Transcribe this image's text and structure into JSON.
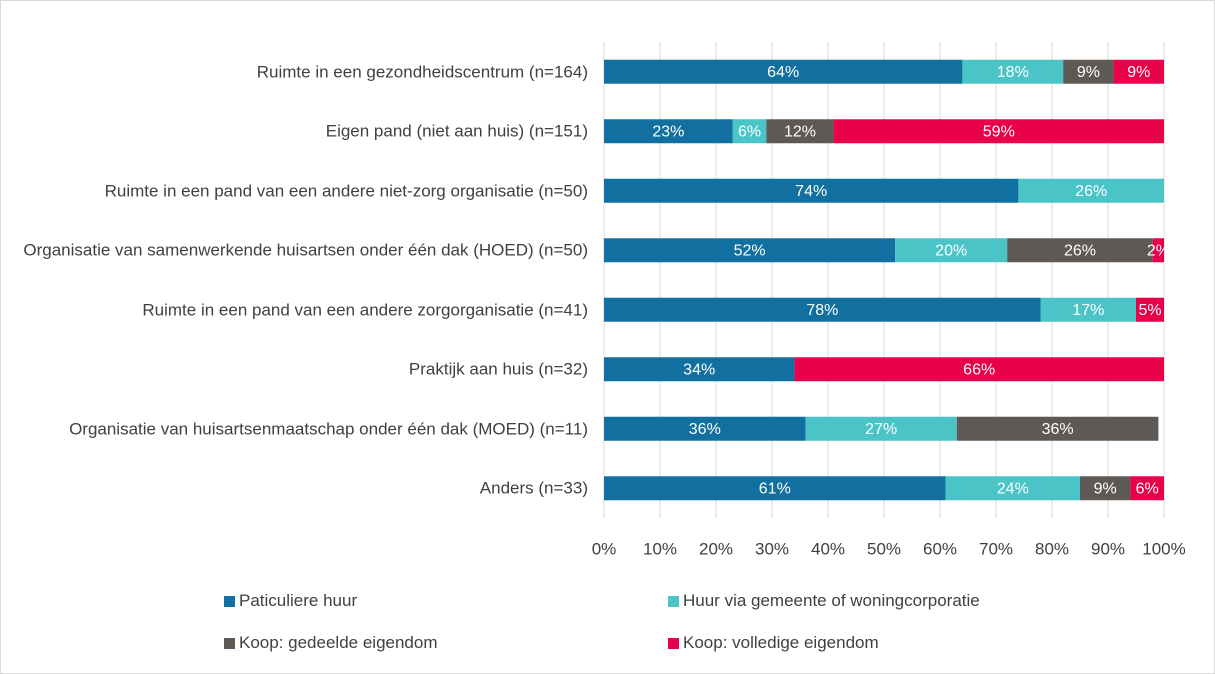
{
  "chart_data": {
    "type": "stacked-bar-horizontal",
    "categories": [
      "Ruimte in een gezondheidscentrum (n=164)",
      "Eigen pand (niet aan huis) (n=151)",
      "Ruimte in een pand van een andere niet-zorg organisatie (n=50)",
      "Organisatie van samenwerkende huisartsen onder één dak (HOED) (n=50)",
      "Ruimte in een pand van een andere zorgorganisatie (n=41)",
      "Praktijk aan huis (n=32)",
      "Organisatie van huisartsenmaatschap onder één dak (MOED) (n=11)",
      "Anders (n=33)"
    ],
    "series": [
      {
        "name": "Paticuliere huur",
        "color": "#1170a0",
        "values": [
          64,
          23,
          74,
          52,
          78,
          34,
          36,
          61
        ],
        "value_labels": [
          "64%",
          "23%",
          "74%",
          "52%",
          "78%",
          "34%",
          "36%",
          "61%"
        ]
      },
      {
        "name": "Huur via gemeente of woningcorporatie",
        "color": "#4bc4c8",
        "values": [
          18,
          6,
          26,
          20,
          17,
          null,
          27,
          24
        ],
        "value_labels": [
          "18%",
          "6%",
          "26%",
          "20%",
          "17%",
          null,
          "27%",
          "24%"
        ]
      },
      {
        "name": "Koop: gedeelde eigendom",
        "color": "#5f5955",
        "values": [
          9,
          12,
          null,
          26,
          null,
          null,
          36,
          9
        ],
        "value_labels": [
          "9%",
          "12%",
          null,
          "26%",
          null,
          null,
          "36%",
          "9%"
        ]
      },
      {
        "name": "Koop: volledige eigendom",
        "color": "#e8004a",
        "values": [
          9,
          59,
          null,
          2,
          5,
          66,
          null,
          6
        ],
        "value_labels": [
          "9%",
          "59%",
          null,
          "2%",
          "5%",
          "66%",
          null,
          "6%"
        ]
      }
    ],
    "xlim": [
      0,
      100
    ],
    "xticks": [
      {
        "value": 0,
        "label": "0%"
      },
      {
        "value": 10,
        "label": "10%"
      },
      {
        "value": 20,
        "label": "20%"
      },
      {
        "value": 30,
        "label": "30%"
      },
      {
        "value": 40,
        "label": "40%"
      },
      {
        "value": 50,
        "label": "50%"
      },
      {
        "value": 60,
        "label": "60%"
      },
      {
        "value": 70,
        "label": "70%"
      },
      {
        "value": 80,
        "label": "80%"
      },
      {
        "value": 90,
        "label": "90%"
      },
      {
        "value": 100,
        "label": "100%"
      }
    ],
    "grid": true
  }
}
